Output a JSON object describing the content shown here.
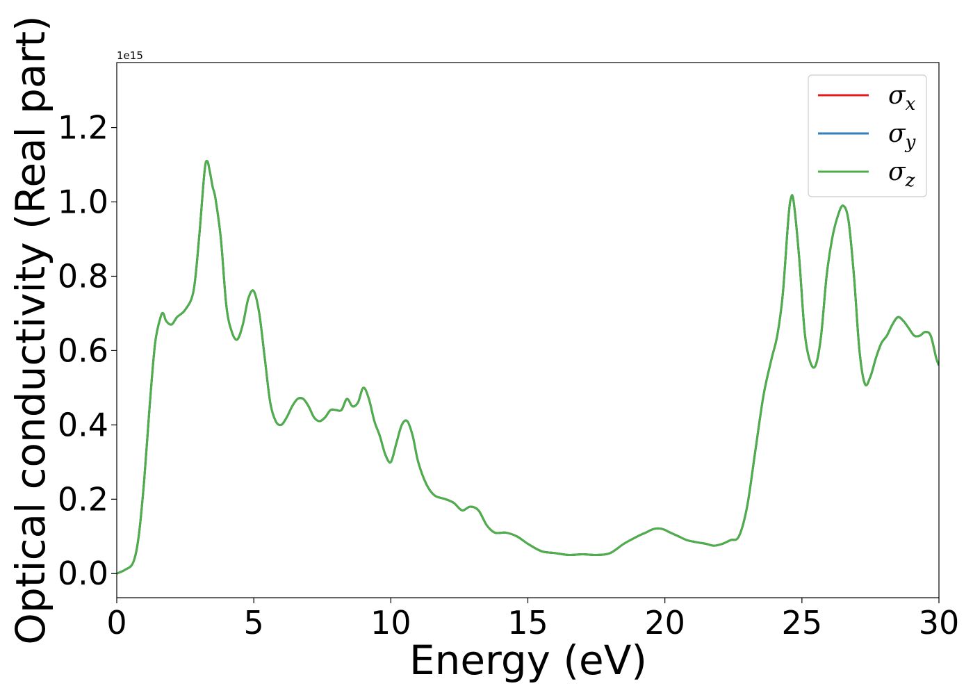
{
  "chart_data": {
    "type": "line",
    "title": "",
    "xlabel": "Energy (eV)",
    "ylabel": "Optical conductivity (Real part)",
    "y_offset_label": "1e15",
    "xlim": [
      0,
      30
    ],
    "ylim": [
      -0.065,
      1.375
    ],
    "x_ticks": [
      0,
      5,
      10,
      15,
      20,
      25,
      30
    ],
    "y_ticks": [
      0.0,
      0.2,
      0.4,
      0.6,
      0.8,
      1.0,
      1.2
    ],
    "x_tick_labels": [
      "0",
      "5",
      "10",
      "15",
      "20",
      "25",
      "30"
    ],
    "y_tick_labels": [
      "0.0",
      "0.2",
      "0.4",
      "0.6",
      "0.8",
      "1.0",
      "1.2"
    ],
    "grid": false,
    "legend_position": "top-right",
    "series": [
      {
        "name": "σ",
        "subscript": "x",
        "color": "#e41a1c"
      },
      {
        "name": "σ",
        "subscript": "y",
        "color": "#377eb8"
      },
      {
        "name": "σ",
        "subscript": "z",
        "color": "#4daf4a"
      }
    ],
    "x": [
      0,
      0.3,
      0.6,
      0.8,
      1.0,
      1.2,
      1.4,
      1.6,
      1.7,
      1.8,
      2.0,
      2.2,
      2.5,
      2.8,
      3.0,
      3.2,
      3.3,
      3.4,
      3.5,
      3.6,
      3.8,
      4.0,
      4.2,
      4.4,
      4.6,
      4.8,
      5.0,
      5.2,
      5.4,
      5.6,
      5.8,
      6.0,
      6.2,
      6.4,
      6.6,
      6.8,
      7.0,
      7.2,
      7.4,
      7.6,
      7.8,
      8.0,
      8.2,
      8.4,
      8.6,
      8.8,
      9.0,
      9.2,
      9.4,
      9.6,
      9.8,
      10.0,
      10.2,
      10.4,
      10.6,
      10.8,
      11.0,
      11.3,
      11.6,
      12.0,
      12.3,
      12.6,
      12.9,
      13.2,
      13.5,
      13.8,
      14.2,
      14.6,
      15.0,
      15.5,
      16.0,
      16.5,
      17.0,
      17.5,
      18.0,
      18.5,
      19.0,
      19.3,
      19.6,
      19.9,
      20.2,
      20.5,
      20.8,
      21.1,
      21.5,
      21.8,
      22.1,
      22.4,
      22.7,
      23.0,
      23.3,
      23.6,
      23.9,
      24.1,
      24.3,
      24.5,
      24.6,
      24.7,
      24.9,
      25.1,
      25.3,
      25.5,
      25.7,
      25.9,
      26.1,
      26.3,
      26.5,
      26.7,
      26.9,
      27.1,
      27.3,
      27.5,
      27.7,
      27.9,
      28.1,
      28.3,
      28.5,
      28.7,
      28.9,
      29.1,
      29.3,
      29.5,
      29.7,
      29.9,
      30.0
    ],
    "values": [
      0.0,
      0.01,
      0.03,
      0.1,
      0.25,
      0.45,
      0.62,
      0.69,
      0.7,
      0.68,
      0.67,
      0.69,
      0.71,
      0.76,
      0.9,
      1.08,
      1.11,
      1.08,
      1.04,
      1.01,
      0.9,
      0.72,
      0.65,
      0.63,
      0.67,
      0.74,
      0.76,
      0.7,
      0.58,
      0.46,
      0.41,
      0.4,
      0.42,
      0.45,
      0.47,
      0.47,
      0.45,
      0.42,
      0.41,
      0.42,
      0.44,
      0.44,
      0.44,
      0.47,
      0.45,
      0.46,
      0.5,
      0.47,
      0.41,
      0.37,
      0.32,
      0.3,
      0.35,
      0.4,
      0.41,
      0.37,
      0.3,
      0.24,
      0.21,
      0.2,
      0.19,
      0.17,
      0.18,
      0.17,
      0.13,
      0.11,
      0.11,
      0.1,
      0.08,
      0.06,
      0.055,
      0.05,
      0.052,
      0.05,
      0.055,
      0.08,
      0.1,
      0.11,
      0.12,
      0.12,
      0.11,
      0.1,
      0.09,
      0.085,
      0.08,
      0.075,
      0.08,
      0.09,
      0.1,
      0.18,
      0.33,
      0.48,
      0.58,
      0.64,
      0.75,
      0.95,
      1.01,
      1.0,
      0.85,
      0.65,
      0.57,
      0.56,
      0.64,
      0.8,
      0.9,
      0.96,
      0.99,
      0.95,
      0.8,
      0.6,
      0.51,
      0.53,
      0.58,
      0.62,
      0.64,
      0.67,
      0.69,
      0.68,
      0.66,
      0.64,
      0.64,
      0.65,
      0.64,
      0.58,
      0.56
    ]
  }
}
